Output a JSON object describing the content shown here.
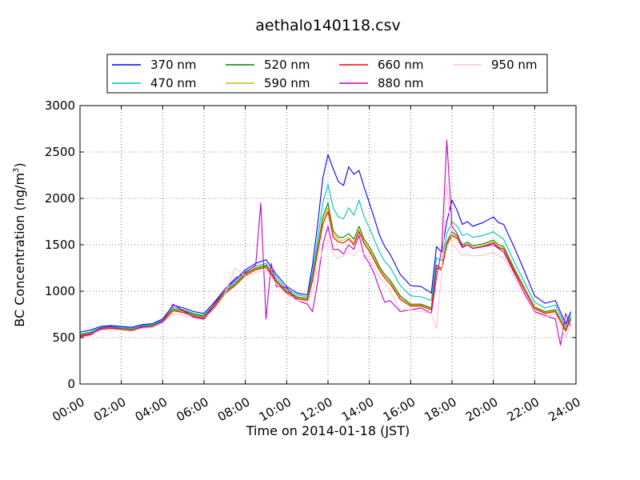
{
  "chart_data": {
    "type": "line",
    "title": "aethalo140118.csv",
    "xlabel": "Time on 2014-01-18 (JST)",
    "ylabel_main": "BC Concentration (ng/m",
    "ylabel_sup": "3",
    "ylabel_close": ")",
    "xlim": [
      0,
      24
    ],
    "ylim": [
      0,
      3000
    ],
    "grid": true,
    "legend_placement": "top",
    "x_ticks": [
      {
        "x": 0,
        "label": "00:00"
      },
      {
        "x": 2,
        "label": "02:00"
      },
      {
        "x": 4,
        "label": "04:00"
      },
      {
        "x": 6,
        "label": "06:00"
      },
      {
        "x": 8,
        "label": "08:00"
      },
      {
        "x": 10,
        "label": "10:00"
      },
      {
        "x": 12,
        "label": "12:00"
      },
      {
        "x": 14,
        "label": "14:00"
      },
      {
        "x": 16,
        "label": "16:00"
      },
      {
        "x": 18,
        "label": "18:00"
      },
      {
        "x": 20,
        "label": "20:00"
      },
      {
        "x": 22,
        "label": "22:00"
      },
      {
        "x": 24,
        "label": "24:00"
      }
    ],
    "y_ticks": [
      {
        "y": 0,
        "label": "0"
      },
      {
        "y": 500,
        "label": "500"
      },
      {
        "y": 1000,
        "label": "1000"
      },
      {
        "y": 1500,
        "label": "1500"
      },
      {
        "y": 2000,
        "label": "2000"
      },
      {
        "y": 2500,
        "label": "2500"
      },
      {
        "y": 3000,
        "label": "3000"
      }
    ],
    "series": [
      {
        "name": "370 nm",
        "color": "#0000ff",
        "x": [
          0,
          0.5,
          1,
          1.5,
          2,
          2.5,
          3,
          3.5,
          4,
          4.5,
          5,
          5.5,
          6,
          6.5,
          7,
          7.5,
          8,
          8.5,
          9,
          9.5,
          10,
          10.5,
          11,
          11.25,
          11.5,
          11.75,
          12,
          12.25,
          12.5,
          12.75,
          13,
          13.25,
          13.5,
          13.75,
          14,
          14.25,
          14.5,
          14.75,
          15,
          15.5,
          16,
          16.5,
          17,
          17.25,
          17.5,
          17.75,
          18,
          18.25,
          18.5,
          18.75,
          19,
          19.5,
          20,
          20.25,
          20.5,
          21,
          21.5,
          22,
          22.5,
          23,
          23.5,
          23.75
        ],
        "y": [
          560,
          580,
          620,
          630,
          620,
          610,
          640,
          650,
          700,
          850,
          820,
          780,
          760,
          880,
          1020,
          1120,
          1230,
          1300,
          1340,
          1180,
          1050,
          980,
          960,
          1280,
          1720,
          2220,
          2470,
          2320,
          2180,
          2140,
          2340,
          2260,
          2300,
          2120,
          1950,
          1780,
          1600,
          1480,
          1400,
          1180,
          1060,
          1050,
          980,
          1480,
          1420,
          1750,
          1980,
          1870,
          1720,
          1750,
          1700,
          1740,
          1800,
          1740,
          1720,
          1480,
          1220,
          950,
          870,
          900,
          650,
          780
        ]
      },
      {
        "name": "470 nm",
        "color": "#00bfbf",
        "x": [
          0,
          0.5,
          1,
          1.5,
          2,
          2.5,
          3,
          3.5,
          4,
          4.5,
          5,
          5.5,
          6,
          6.5,
          7,
          7.5,
          8,
          8.5,
          9,
          9.5,
          10,
          10.5,
          11,
          11.25,
          11.5,
          11.75,
          12,
          12.25,
          12.5,
          12.75,
          13,
          13.25,
          13.5,
          13.75,
          14,
          14.25,
          14.5,
          14.75,
          15,
          15.5,
          16,
          16.5,
          17,
          17.25,
          17.5,
          17.75,
          18,
          18.25,
          18.5,
          18.75,
          19,
          19.5,
          20,
          20.25,
          20.5,
          21,
          21.5,
          22,
          22.5,
          23,
          23.5,
          23.75
        ],
        "y": [
          540,
          560,
          610,
          620,
          610,
          600,
          630,
          640,
          690,
          830,
          800,
          760,
          740,
          860,
          1000,
          1100,
          1210,
          1270,
          1300,
          1150,
          1020,
          960,
          940,
          1200,
          1560,
          1950,
          2150,
          1900,
          1800,
          1780,
          1900,
          1820,
          1980,
          1800,
          1680,
          1550,
          1420,
          1320,
          1260,
          1060,
          950,
          940,
          900,
          1360,
          1330,
          1620,
          1750,
          1700,
          1600,
          1620,
          1580,
          1600,
          1640,
          1600,
          1560,
          1320,
          1100,
          880,
          820,
          850,
          620,
          750
        ]
      },
      {
        "name": "520 nm",
        "color": "#008000",
        "x": [
          0,
          0.5,
          1,
          1.5,
          2,
          2.5,
          3,
          3.5,
          4,
          4.5,
          5,
          5.5,
          6,
          6.5,
          7,
          7.5,
          8,
          8.5,
          9,
          9.5,
          10,
          10.5,
          11,
          11.25,
          11.5,
          11.75,
          12,
          12.25,
          12.5,
          12.75,
          13,
          13.25,
          13.5,
          13.75,
          14,
          14.25,
          14.5,
          14.75,
          15,
          15.5,
          16,
          16.5,
          17,
          17.25,
          17.5,
          17.75,
          18,
          18.25,
          18.5,
          18.75,
          19,
          19.5,
          20,
          20.25,
          20.5,
          21,
          21.5,
          22,
          22.5,
          23,
          23.5,
          23.75
        ],
        "y": [
          530,
          550,
          600,
          610,
          600,
          590,
          620,
          630,
          680,
          810,
          790,
          750,
          730,
          850,
          990,
          1080,
          1190,
          1250,
          1280,
          1120,
          1000,
          940,
          920,
          1150,
          1480,
          1800,
          1950,
          1650,
          1580,
          1580,
          1620,
          1560,
          1700,
          1560,
          1480,
          1380,
          1260,
          1180,
          1120,
          950,
          860,
          860,
          820,
          1280,
          1250,
          1530,
          1640,
          1600,
          1500,
          1530,
          1490,
          1510,
          1550,
          1500,
          1480,
          1250,
          1040,
          830,
          780,
          800,
          590,
          720
        ]
      },
      {
        "name": "590 nm",
        "color": "#bfbf00",
        "x": [
          0,
          0.5,
          1,
          1.5,
          2,
          2.5,
          3,
          3.5,
          4,
          4.5,
          5,
          5.5,
          6,
          6.5,
          7,
          7.5,
          8,
          8.5,
          9,
          9.5,
          10,
          10.5,
          11,
          11.25,
          11.5,
          11.75,
          12,
          12.25,
          12.5,
          12.75,
          13,
          13.25,
          13.5,
          13.75,
          14,
          14.25,
          14.5,
          14.75,
          15,
          15.5,
          16,
          16.5,
          17,
          17.25,
          17.5,
          17.75,
          18,
          18.25,
          18.5,
          18.75,
          19,
          19.5,
          20,
          20.25,
          20.5,
          21,
          21.5,
          22,
          22.5,
          23,
          23.5,
          23.75
        ],
        "y": [
          525,
          545,
          595,
          605,
          595,
          585,
          615,
          625,
          675,
          800,
          780,
          740,
          720,
          840,
          980,
          1070,
          1180,
          1240,
          1270,
          1110,
          990,
          930,
          910,
          1130,
          1450,
          1760,
          1900,
          1610,
          1550,
          1550,
          1580,
          1520,
          1660,
          1530,
          1450,
          1350,
          1240,
          1160,
          1100,
          930,
          850,
          850,
          810,
          1260,
          1240,
          1510,
          1620,
          1580,
          1480,
          1510,
          1470,
          1490,
          1530,
          1480,
          1460,
          1230,
          1030,
          820,
          770,
          790,
          580,
          710
        ]
      },
      {
        "name": "660 nm",
        "color": "#ff0000",
        "x": [
          0,
          0.5,
          1,
          1.5,
          2,
          2.5,
          3,
          3.5,
          4,
          4.5,
          5,
          5.5,
          6,
          6.5,
          7,
          7.5,
          8,
          8.5,
          9,
          9.5,
          10,
          10.5,
          11,
          11.25,
          11.5,
          11.75,
          12,
          12.25,
          12.5,
          12.75,
          13,
          13.25,
          13.5,
          13.75,
          14,
          14.25,
          14.5,
          14.75,
          15,
          15.5,
          16,
          16.5,
          17,
          17.25,
          17.5,
          17.75,
          18,
          18.25,
          18.5,
          18.75,
          19,
          19.5,
          20,
          20.25,
          20.5,
          21,
          21.5,
          22,
          22.5,
          23,
          23.5,
          23.75
        ],
        "y": [
          520,
          540,
          590,
          600,
          590,
          580,
          610,
          620,
          670,
          790,
          770,
          730,
          710,
          830,
          970,
          1060,
          1170,
          1230,
          1260,
          1100,
          980,
          920,
          900,
          1110,
          1420,
          1720,
          1860,
          1580,
          1530,
          1520,
          1560,
          1500,
          1640,
          1510,
          1430,
          1330,
          1220,
          1140,
          1080,
          910,
          840,
          840,
          800,
          1250,
          1230,
          1500,
          1600,
          1570,
          1470,
          1500,
          1460,
          1480,
          1520,
          1470,
          1450,
          1220,
          1020,
          810,
          760,
          780,
          570,
          700
        ]
      },
      {
        "name": "880 nm",
        "color": "#bf00bf",
        "x": [
          0,
          0.5,
          1,
          1.5,
          2,
          2.5,
          3,
          3.5,
          4,
          4.5,
          5,
          5.5,
          6,
          6.5,
          7,
          7.5,
          8,
          8.5,
          8.75,
          9,
          9.25,
          9.5,
          10,
          10.5,
          11,
          11.25,
          11.5,
          11.75,
          12,
          12.25,
          12.5,
          12.75,
          13,
          13.25,
          13.5,
          13.75,
          14,
          14.25,
          14.5,
          14.75,
          15,
          15.5,
          16,
          16.5,
          17,
          17.25,
          17.5,
          17.75,
          18,
          18.25,
          18.5,
          18.75,
          19,
          19.5,
          20,
          20.25,
          20.5,
          21,
          21.5,
          22,
          22.5,
          23,
          23.25,
          23.5,
          23.75
        ],
        "y": [
          510,
          530,
          600,
          620,
          580,
          570,
          620,
          610,
          680,
          860,
          790,
          720,
          700,
          860,
          1020,
          1140,
          1200,
          1280,
          1950,
          700,
          1300,
          1050,
          1040,
          900,
          860,
          780,
          1100,
          1500,
          1700,
          1450,
          1450,
          1400,
          1500,
          1450,
          1600,
          1380,
          1300,
          1180,
          1020,
          880,
          900,
          780,
          800,
          820,
          760,
          1150,
          1450,
          2630,
          1700,
          1620,
          1480,
          1500,
          1460,
          1480,
          1500,
          1460,
          1420,
          1200,
          980,
          780,
          740,
          700,
          420,
          760,
          620
        ]
      },
      {
        "name": "950 nm",
        "color": "#ffc0cb",
        "x": [
          0,
          0.5,
          1,
          1.5,
          2,
          2.5,
          3,
          3.5,
          4,
          4.5,
          5,
          5.5,
          6,
          6.5,
          7,
          7.5,
          8,
          8.5,
          9,
          9.5,
          10,
          10.5,
          11,
          11.25,
          11.5,
          11.75,
          12,
          12.25,
          12.5,
          12.75,
          13,
          13.25,
          13.5,
          13.75,
          14,
          14.25,
          14.5,
          14.75,
          15,
          15.5,
          16,
          16.5,
          17,
          17.25,
          17.5,
          17.75,
          18,
          18.25,
          18.5,
          18.75,
          19,
          19.5,
          20,
          20.25,
          20.5,
          21,
          21.5,
          22,
          22.5,
          23,
          23.5,
          23.75
        ],
        "y": [
          500,
          520,
          580,
          590,
          580,
          570,
          600,
          610,
          660,
          760,
          740,
          710,
          690,
          810,
          960,
          1250,
          1160,
          1200,
          1230,
          1080,
          960,
          900,
          880,
          1000,
          1250,
          1450,
          1560,
          1400,
          1350,
          1380,
          1420,
          1380,
          1450,
          1400,
          1350,
          1250,
          1150,
          1080,
          1000,
          800,
          800,
          780,
          760,
          600,
          1200,
          2150,
          1500,
          1450,
          1380,
          1400,
          1380,
          1390,
          1420,
          1380,
          1360,
          1150,
          960,
          770,
          720,
          760,
          500,
          650
        ]
      }
    ]
  }
}
